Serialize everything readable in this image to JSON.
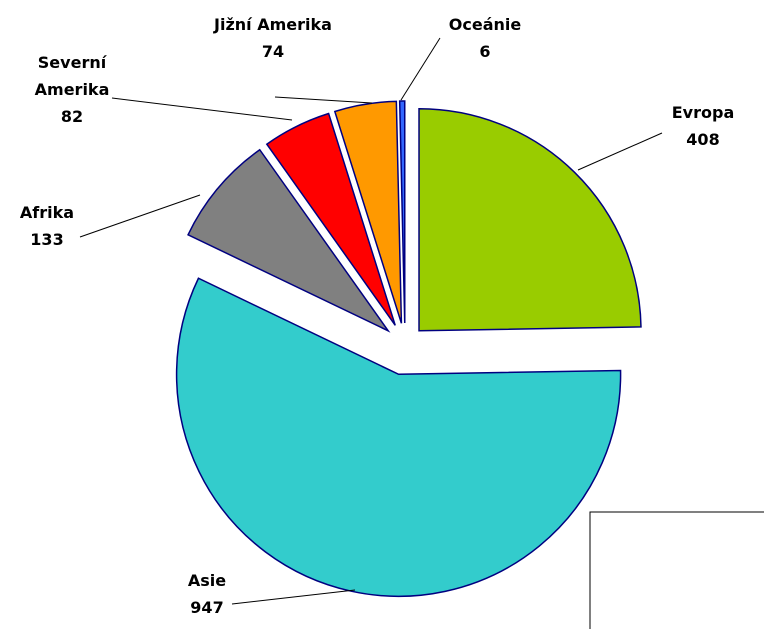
{
  "chart_data": {
    "type": "pie",
    "categories": [
      "Evropa",
      "Asie",
      "Afrika",
      "Severní\nAmerika",
      "Jižní Amerika",
      "Oceánie"
    ],
    "values": [
      408,
      947,
      133,
      82,
      74,
      6
    ],
    "colors": [
      "#99cc00",
      "#33cccc",
      "#808080",
      "#ff0000",
      "#ff9900",
      "#3366ff"
    ]
  }
}
